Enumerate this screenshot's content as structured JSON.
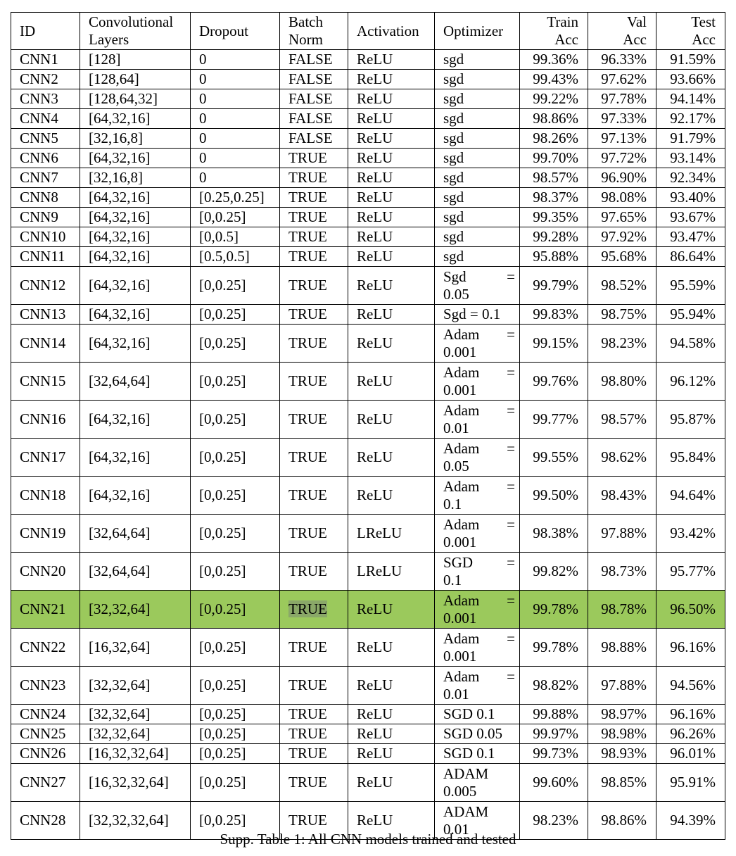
{
  "headers": {
    "id": "ID",
    "layers": [
      "Convolutional",
      "Layers"
    ],
    "dropout": "Dropout",
    "batchnorm": [
      "Batch",
      "Norm"
    ],
    "activation": "Activation",
    "optimizer": "Optimizer",
    "train": [
      "Train",
      "Acc"
    ],
    "val": [
      "Val",
      "Acc"
    ],
    "test": [
      "Test",
      "Acc"
    ]
  },
  "rows": [
    {
      "id": "CNN1",
      "layers": "[128]",
      "dropout": "0",
      "bn": "FALSE",
      "act": "ReLU",
      "opt": [
        "sgd"
      ],
      "train": "99.36%",
      "val": "96.33%",
      "test": "91.59%"
    },
    {
      "id": "CNN2",
      "layers": "[128,64]",
      "dropout": "0",
      "bn": "FALSE",
      "act": "ReLU",
      "opt": [
        "sgd"
      ],
      "train": "99.43%",
      "val": "97.62%",
      "test": "93.66%"
    },
    {
      "id": "CNN3",
      "layers": "[128,64,32]",
      "dropout": "0",
      "bn": "FALSE",
      "act": "ReLU",
      "opt": [
        "sgd"
      ],
      "train": "99.22%",
      "val": "97.78%",
      "test": "94.14%"
    },
    {
      "id": "CNN4",
      "layers": "[64,32,16]",
      "dropout": "0",
      "bn": "FALSE",
      "act": "ReLU",
      "opt": [
        "sgd"
      ],
      "train": "98.86%",
      "val": "97.33%",
      "test": "92.17%"
    },
    {
      "id": "CNN5",
      "layers": "[32,16,8]",
      "dropout": "0",
      "bn": "FALSE",
      "act": "ReLU",
      "opt": [
        "sgd"
      ],
      "train": "98.26%",
      "val": "97.13%",
      "test": "91.79%"
    },
    {
      "id": "CNN6",
      "layers": "[64,32,16]",
      "dropout": "0",
      "bn": "TRUE",
      "act": "ReLU",
      "opt": [
        "sgd"
      ],
      "train": "99.70%",
      "val": "97.72%",
      "test": "93.14%"
    },
    {
      "id": "CNN7",
      "layers": "[32,16,8]",
      "dropout": "0",
      "bn": "TRUE",
      "act": "ReLU",
      "opt": [
        "sgd"
      ],
      "train": "98.57%",
      "val": "96.90%",
      "test": "92.34%"
    },
    {
      "id": "CNN8",
      "layers": "[64,32,16]",
      "dropout": "[0.25,0.25]",
      "bn": "TRUE",
      "act": "ReLU",
      "opt": [
        "sgd"
      ],
      "train": "98.37%",
      "val": "98.08%",
      "test": "93.40%"
    },
    {
      "id": "CNN9",
      "layers": "[64,32,16]",
      "dropout": "[0,0.25]",
      "bn": "TRUE",
      "act": "ReLU",
      "opt": [
        "sgd"
      ],
      "train": "99.35%",
      "val": "97.65%",
      "test": "93.67%"
    },
    {
      "id": "CNN10",
      "layers": "[64,32,16]",
      "dropout": "[0,0.5]",
      "bn": "TRUE",
      "act": "ReLU",
      "opt": [
        "sgd"
      ],
      "train": "99.28%",
      "val": "97.92%",
      "test": "93.47%"
    },
    {
      "id": "CNN11",
      "layers": "[64,32,16]",
      "dropout": "[0.5,0.5]",
      "bn": "TRUE",
      "act": "ReLU",
      "opt": [
        "sgd"
      ],
      "train": "95.88%",
      "val": "95.68%",
      "test": "86.64%"
    },
    {
      "id": "CNN12",
      "layers": "[64,32,16]",
      "dropout": "[0,0.25]",
      "bn": "TRUE",
      "act": "ReLU",
      "opt": [
        "Sgd",
        "=",
        "0.05"
      ],
      "train": "99.79%",
      "val": "98.52%",
      "test": "95.59%"
    },
    {
      "id": "CNN13",
      "layers": "[64,32,16]",
      "dropout": "[0,0.25]",
      "bn": "TRUE",
      "act": "ReLU",
      "opt": [
        "Sgd = 0.1"
      ],
      "train": "99.83%",
      "val": "98.75%",
      "test": "95.94%"
    },
    {
      "id": "CNN14",
      "layers": "[64,32,16]",
      "dropout": "[0,0.25]",
      "bn": "TRUE",
      "act": "ReLU",
      "opt": [
        "Adam",
        "=",
        "0.001"
      ],
      "train": "99.15%",
      "val": "98.23%",
      "test": "94.58%"
    },
    {
      "id": "CNN15",
      "layers": "[32,64,64]",
      "dropout": "[0,0.25]",
      "bn": "TRUE",
      "act": "ReLU",
      "opt": [
        "Adam",
        "=",
        "0.001"
      ],
      "train": "99.76%",
      "val": "98.80%",
      "test": "96.12%"
    },
    {
      "id": "CNN16",
      "layers": "[64,32,16]",
      "dropout": "[0,0.25]",
      "bn": "TRUE",
      "act": "ReLU",
      "opt": [
        "Adam",
        "=",
        "0.01"
      ],
      "train": "99.77%",
      "val": "98.57%",
      "test": "95.87%"
    },
    {
      "id": "CNN17",
      "layers": "[64,32,16]",
      "dropout": "[0,0.25]",
      "bn": "TRUE",
      "act": "ReLU",
      "opt": [
        "Adam",
        "=",
        "0.05"
      ],
      "train": "99.55%",
      "val": "98.62%",
      "test": "95.84%"
    },
    {
      "id": "CNN18",
      "layers": "[64,32,16]",
      "dropout": "[0,0.25]",
      "bn": "TRUE",
      "act": "ReLU",
      "opt": [
        "Adam",
        "=",
        "0.1"
      ],
      "train": "99.50%",
      "val": "98.43%",
      "test": "94.64%"
    },
    {
      "id": "CNN19",
      "layers": "[32,64,64]",
      "dropout": "[0,0.25]",
      "bn": "TRUE",
      "act": "LReLU",
      "opt": [
        "Adam",
        "=",
        "0.001"
      ],
      "train": "98.38%",
      "val": "97.88%",
      "test": "93.42%"
    },
    {
      "id": "CNN20",
      "layers": "[32,64,64]",
      "dropout": "[0,0.25]",
      "bn": "TRUE",
      "act": "LReLU",
      "opt": [
        "SGD",
        "=",
        "0.1"
      ],
      "train": "99.82%",
      "val": "98.73%",
      "test": "95.77%"
    },
    {
      "id": "CNN21",
      "layers": "[32,32,64]",
      "dropout": "[0,0.25]",
      "bn": "TRUE",
      "act": "ReLU",
      "opt": [
        "Adam",
        "=",
        "0.001"
      ],
      "train": "99.78%",
      "val": "98.78%",
      "test": "96.50%",
      "highlight": true
    },
    {
      "id": "CNN22",
      "layers": "[16,32,64]",
      "dropout": "[0,0.25]",
      "bn": "TRUE",
      "act": "ReLU",
      "opt": [
        "Adam",
        "=",
        "0.001"
      ],
      "train": "99.78%",
      "val": "98.88%",
      "test": "96.16%"
    },
    {
      "id": "CNN23",
      "layers": "[32,32,64]",
      "dropout": "[0,0.25]",
      "bn": "TRUE",
      "act": "ReLU",
      "opt": [
        "Adam",
        "=",
        "0.01"
      ],
      "train": "98.82%",
      "val": "97.88%",
      "test": "94.56%"
    },
    {
      "id": "CNN24",
      "layers": "[32,32,64]",
      "dropout": "[0,0.25]",
      "bn": "TRUE",
      "act": "ReLU",
      "opt": [
        "SGD 0.1"
      ],
      "train": "99.88%",
      "val": "98.97%",
      "test": "96.16%"
    },
    {
      "id": "CNN25",
      "layers": "[32,32,64]",
      "dropout": "[0,0.25]",
      "bn": "TRUE",
      "act": "ReLU",
      "opt": [
        "SGD 0.05"
      ],
      "train": "99.97%",
      "val": "98.98%",
      "test": "96.26%"
    },
    {
      "id": "CNN26",
      "layers": "[16,32,32,64]",
      "dropout": "[0,0.25]",
      "bn": "TRUE",
      "act": "ReLU",
      "opt": [
        "SGD 0.1"
      ],
      "train": "99.73%",
      "val": "98.93%",
      "test": "96.01%"
    },
    {
      "id": "CNN27",
      "layers": "[16,32,32,64]",
      "dropout": "[0,0.25]",
      "bn": "TRUE",
      "act": "ReLU",
      "opt": [
        "ADAM",
        "",
        "0.005"
      ],
      "train": "99.60%",
      "val": "98.85%",
      "test": "95.91%"
    },
    {
      "id": "CNN28",
      "layers": "[32,32,32,64]",
      "dropout": "[0,0.25]",
      "bn": "TRUE",
      "act": "ReLU",
      "opt": [
        "ADAM",
        "",
        "0.01"
      ],
      "train": "98.23%",
      "val": "98.86%",
      "test": "94.39%"
    }
  ],
  "caption": "Supp. Table 1: All CNN models trained and tested",
  "colors": {
    "highlight_row": "#9bc95c",
    "highlight_mark": "#8aa868"
  }
}
